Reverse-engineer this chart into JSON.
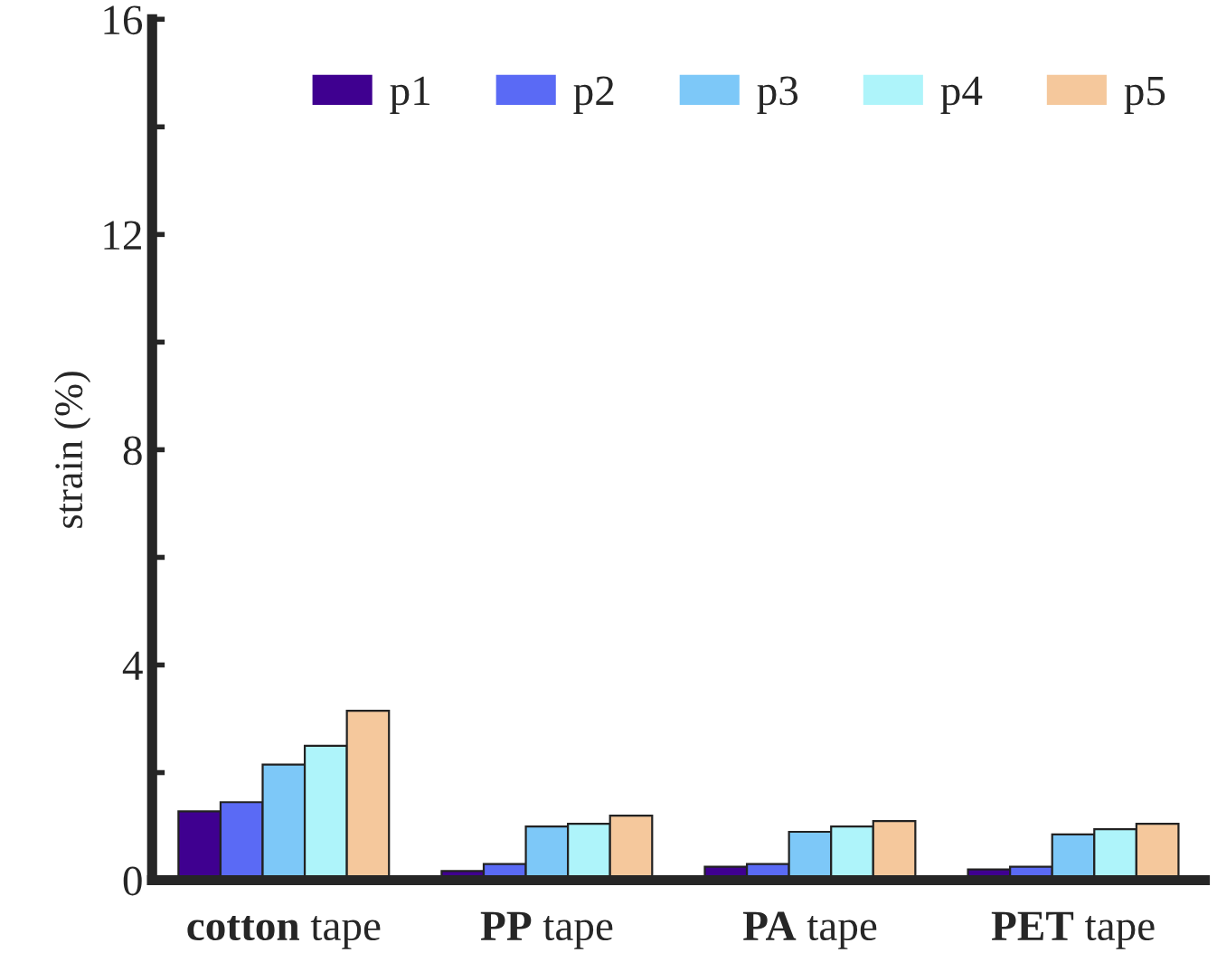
{
  "chart_data": {
    "type": "bar",
    "ylabel": "strain (%)",
    "categories": [
      "cotton tape",
      "PP tape",
      "PA tape",
      "PET tape"
    ],
    "series": [
      {
        "name": "p1",
        "color": "#3f0090",
        "values": [
          1.28,
          0.17,
          0.25,
          0.2
        ]
      },
      {
        "name": "p2",
        "color": "#5a6af5",
        "values": [
          1.45,
          0.3,
          0.3,
          0.25
        ]
      },
      {
        "name": "p3",
        "color": "#7dc8f8",
        "values": [
          2.15,
          1.0,
          0.9,
          0.85
        ]
      },
      {
        "name": "p4",
        "color": "#aef4fa",
        "values": [
          2.5,
          1.05,
          1.0,
          0.95
        ]
      },
      {
        "name": "p5",
        "color": "#f5c89c",
        "values": [
          3.15,
          1.2,
          1.1,
          1.05
        ]
      }
    ],
    "ylim": [
      0,
      16
    ],
    "yticks": [
      0,
      {
        "value": 2,
        "label": null
      },
      4,
      {
        "value": 6,
        "label": null
      },
      8,
      {
        "value": 10,
        "label": null
      },
      12,
      {
        "value": 14,
        "label": null
      },
      16
    ],
    "grid": false,
    "legend": "top right"
  }
}
